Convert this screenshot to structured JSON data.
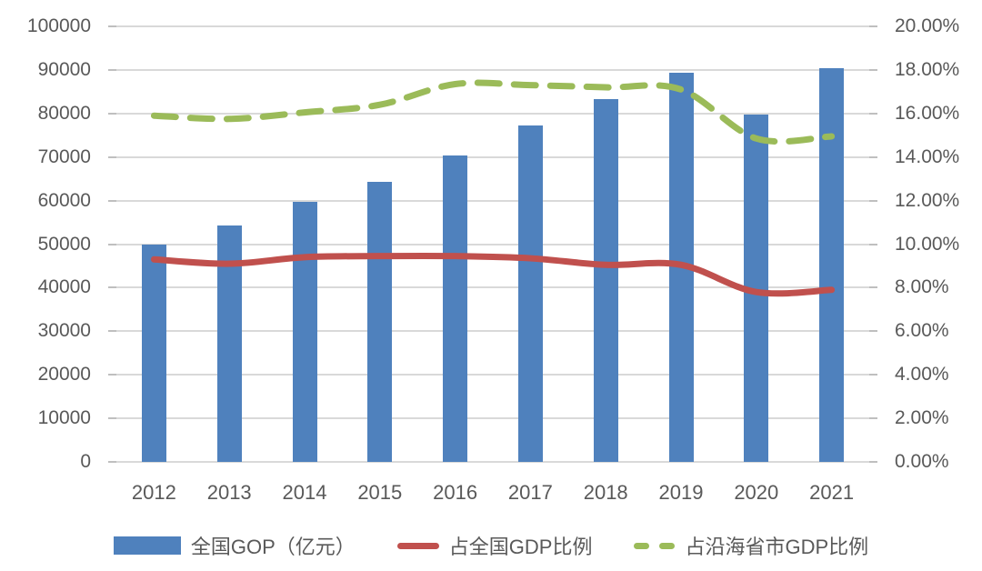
{
  "colors": {
    "bar_blue": "#4F81BD",
    "line_red": "#C0504D",
    "line_green": "#9BBB59",
    "gridline": "#D9D9D9",
    "tick": "#BFBFBF",
    "text": "#595959",
    "background": "#FFFFFF"
  },
  "chart_data": {
    "type": "bar",
    "subtype": "combo-bar-line",
    "title": "",
    "xlabel": "",
    "ylabel": "",
    "grid": true,
    "legend_position": "bottom",
    "categories": [
      "2012",
      "2013",
      "2014",
      "2015",
      "2016",
      "2017",
      "2018",
      "2019",
      "2020",
      "2021"
    ],
    "series": [
      {
        "name": "全国GOP（亿元）",
        "type": "bar",
        "axis": "left",
        "color": "#4F81BD",
        "values": [
          50000,
          54200,
          59800,
          64300,
          70400,
          77300,
          83300,
          89400,
          79800,
          90400
        ]
      },
      {
        "name": "占全国GDP比例",
        "type": "line",
        "style": "solid",
        "axis": "right",
        "color": "#C0504D",
        "values": [
          9.3,
          9.1,
          9.4,
          9.45,
          9.45,
          9.35,
          9.05,
          9.05,
          7.8,
          7.9
        ]
      },
      {
        "name": "占沿海省市GDP比例",
        "type": "line",
        "style": "dashed",
        "axis": "right",
        "color": "#9BBB59",
        "values": [
          15.9,
          15.75,
          16.05,
          16.4,
          17.35,
          17.3,
          17.2,
          17.1,
          14.85,
          14.95
        ]
      }
    ],
    "left_axis": {
      "min": 0,
      "max": 100000,
      "step": 10000,
      "tick_labels": [
        "0",
        "10000",
        "20000",
        "30000",
        "40000",
        "50000",
        "60000",
        "70000",
        "80000",
        "90000",
        "100000"
      ]
    },
    "right_axis": {
      "min": 0,
      "max": 20,
      "step": 2,
      "tick_labels": [
        "0.00%",
        "2.00%",
        "4.00%",
        "6.00%",
        "8.00%",
        "10.00%",
        "12.00%",
        "14.00%",
        "16.00%",
        "18.00%",
        "20.00%"
      ]
    }
  }
}
